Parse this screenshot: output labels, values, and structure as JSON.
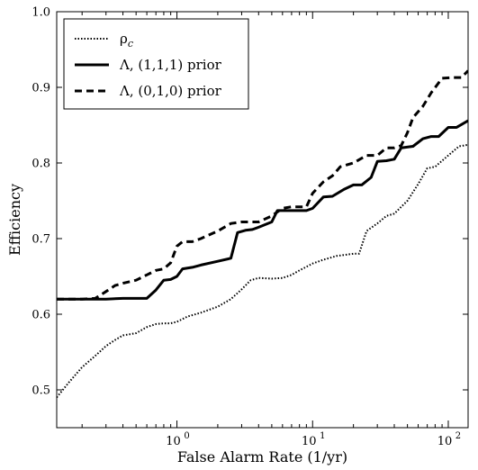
{
  "chart_data": {
    "type": "line",
    "xlabel": "False Alarm Rate (1/yr)",
    "ylabel": "Efficiency",
    "x_scale": "log",
    "xlim": [
      0.13,
      140
    ],
    "ylim": [
      0.45,
      1.0
    ],
    "grid": false,
    "legend_position": "top-left",
    "x_ticks": [
      {
        "value": 1,
        "base": "10",
        "exp": "0"
      },
      {
        "value": 10,
        "base": "10",
        "exp": "1"
      },
      {
        "value": 100,
        "base": "10",
        "exp": "2"
      }
    ],
    "y_ticks": [
      {
        "value": 0.5,
        "label": "0.5"
      },
      {
        "value": 0.6,
        "label": "0.6"
      },
      {
        "value": 0.7,
        "label": "0.7"
      },
      {
        "value": 0.8,
        "label": "0.8"
      },
      {
        "value": 0.9,
        "label": "0.9"
      },
      {
        "value": 1.0,
        "label": "1.0"
      }
    ],
    "series": [
      {
        "legend_main": "ρ",
        "legend_sub": "c",
        "style": "dotted",
        "color": "#000000",
        "x": [
          0.13,
          0.16,
          0.2,
          0.25,
          0.3,
          0.35,
          0.4,
          0.5,
          0.6,
          0.7,
          0.8,
          0.9,
          1.0,
          1.2,
          1.5,
          2.0,
          2.5,
          3.0,
          3.5,
          4.0,
          5.0,
          6.0,
          7.0,
          8.0,
          10.0,
          12.0,
          15.0,
          20.0,
          22.0,
          25.0,
          30.0,
          35.0,
          40.0,
          50.0,
          60.0,
          70.0,
          80.0,
          100.0,
          120.0,
          140.0
        ],
        "y": [
          0.49,
          0.51,
          0.53,
          0.545,
          0.558,
          0.566,
          0.572,
          0.575,
          0.583,
          0.587,
          0.588,
          0.588,
          0.59,
          0.597,
          0.602,
          0.61,
          0.62,
          0.633,
          0.645,
          0.648,
          0.647,
          0.648,
          0.652,
          0.658,
          0.667,
          0.672,
          0.677,
          0.68,
          0.68,
          0.71,
          0.72,
          0.73,
          0.733,
          0.75,
          0.772,
          0.793,
          0.795,
          0.81,
          0.822,
          0.824
        ]
      },
      {
        "legend_main": "Λ, (1,1,1) prior",
        "style": "solid",
        "color": "#000000",
        "x": [
          0.13,
          0.2,
          0.3,
          0.4,
          0.5,
          0.6,
          0.7,
          0.8,
          0.9,
          1.0,
          1.1,
          1.3,
          1.5,
          2.0,
          2.5,
          2.8,
          3.2,
          3.6,
          4.0,
          5.0,
          5.5,
          6.0,
          7.0,
          8.0,
          9.0,
          10.0,
          12.0,
          14.0,
          17.0,
          20.0,
          23.0,
          27.0,
          30.0,
          35.0,
          40.0,
          45.0,
          55.0,
          65.0,
          75.0,
          85.0,
          100.0,
          115.0,
          140.0
        ],
        "y": [
          0.62,
          0.62,
          0.62,
          0.621,
          0.621,
          0.621,
          0.632,
          0.645,
          0.646,
          0.65,
          0.66,
          0.662,
          0.665,
          0.67,
          0.674,
          0.708,
          0.711,
          0.712,
          0.715,
          0.722,
          0.737,
          0.737,
          0.737,
          0.737,
          0.737,
          0.74,
          0.755,
          0.756,
          0.765,
          0.771,
          0.771,
          0.781,
          0.802,
          0.803,
          0.805,
          0.82,
          0.822,
          0.832,
          0.835,
          0.835,
          0.847,
          0.847,
          0.856
        ]
      },
      {
        "legend_main": "Λ, (0,1,0) prior",
        "style": "dashed",
        "color": "#000000",
        "x": [
          0.13,
          0.2,
          0.25,
          0.3,
          0.35,
          0.4,
          0.5,
          0.6,
          0.7,
          0.8,
          0.9,
          1.0,
          1.1,
          1.3,
          1.5,
          2.0,
          2.5,
          3.0,
          3.5,
          4.0,
          5.0,
          6.0,
          7.0,
          8.0,
          9.0,
          10.0,
          12.0,
          14.0,
          16.0,
          20.0,
          25.0,
          30.0,
          35.0,
          40.0,
          45.0,
          50.0,
          55.0,
          65.0,
          75.0,
          90.0,
          110.0,
          125.0,
          140.0
        ],
        "y": [
          0.62,
          0.62,
          0.621,
          0.63,
          0.638,
          0.641,
          0.645,
          0.652,
          0.658,
          0.66,
          0.668,
          0.69,
          0.696,
          0.696,
          0.7,
          0.71,
          0.72,
          0.722,
          0.722,
          0.722,
          0.73,
          0.74,
          0.742,
          0.742,
          0.742,
          0.76,
          0.775,
          0.783,
          0.795,
          0.8,
          0.81,
          0.81,
          0.82,
          0.82,
          0.823,
          0.84,
          0.86,
          0.875,
          0.893,
          0.912,
          0.913,
          0.913,
          0.922
        ]
      }
    ]
  }
}
